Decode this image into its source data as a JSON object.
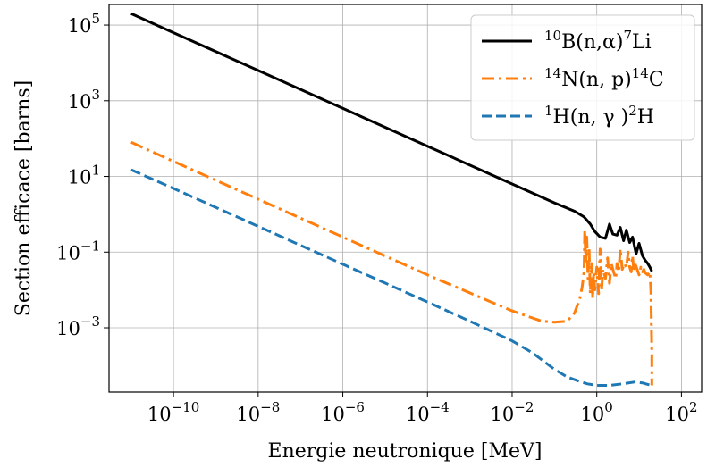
{
  "chart_data": {
    "type": "line",
    "x_scale": "log",
    "y_scale": "log",
    "xlabel": "Energie neutronique [MeV]",
    "ylabel": "Section efficace [barns]",
    "xlim": [
      3e-12,
      300
    ],
    "ylim": [
      2e-05,
      350000.0
    ],
    "grid": true,
    "legend_position": "top-right",
    "x_ticks": [
      {
        "value": 1e-10,
        "base": "10",
        "exp": "−10"
      },
      {
        "value": 1e-08,
        "base": "10",
        "exp": "−8"
      },
      {
        "value": 1e-06,
        "base": "10",
        "exp": "−6"
      },
      {
        "value": 0.0001,
        "base": "10",
        "exp": "−4"
      },
      {
        "value": 0.01,
        "base": "10",
        "exp": "−2"
      },
      {
        "value": 1,
        "base": "10",
        "exp": "0"
      },
      {
        "value": 100,
        "base": "10",
        "exp": "2"
      }
    ],
    "y_ticks": [
      {
        "value": 0.001,
        "base": "10",
        "exp": "−3"
      },
      {
        "value": 0.1,
        "base": "10",
        "exp": "−1"
      },
      {
        "value": 10,
        "base": "10",
        "exp": "1"
      },
      {
        "value": 1000,
        "base": "10",
        "exp": "3"
      },
      {
        "value": 100000,
        "base": "10",
        "exp": "5"
      }
    ],
    "series": [
      {
        "name": "10B(n,α)7Li",
        "legend_parts": [
          {
            "t": "10",
            "sup": true
          },
          {
            "t": "B(n,α)",
            "sup": false
          },
          {
            "t": "7",
            "sup": true
          },
          {
            "t": "Li",
            "sup": false
          }
        ],
        "color": "#000000",
        "style": "solid",
        "x": [
          1e-11,
          1e-10,
          1e-08,
          1e-06,
          0.0001,
          0.01,
          0.1,
          0.3,
          0.5,
          0.7,
          0.9,
          1.2,
          1.6,
          2.0,
          2.4,
          3.0,
          3.6,
          4.3,
          5.0,
          6.0,
          7.0,
          8.5,
          10,
          12,
          14,
          16,
          18,
          20
        ],
        "y": [
          200000,
          63000,
          6300,
          630,
          63,
          6.3,
          2.0,
          1.2,
          0.85,
          0.55,
          0.35,
          0.25,
          0.23,
          0.55,
          0.3,
          0.28,
          0.45,
          0.2,
          0.38,
          0.18,
          0.25,
          0.09,
          0.17,
          0.08,
          0.06,
          0.05,
          0.04,
          0.031
        ]
      },
      {
        "name": "14N(n, p)14C",
        "legend_parts": [
          {
            "t": "14",
            "sup": true
          },
          {
            "t": "N(n, p)",
            "sup": false
          },
          {
            "t": "14",
            "sup": true
          },
          {
            "t": "C",
            "sup": false
          }
        ],
        "color": "#ff7f0e",
        "style": "dashdot",
        "x": [
          1e-11,
          1e-10,
          1e-08,
          1e-06,
          0.0001,
          0.01,
          0.05,
          0.1,
          0.2,
          0.3,
          0.4,
          0.45,
          0.5,
          0.52,
          0.55,
          0.58,
          0.62,
          0.66,
          0.7,
          0.75,
          0.8,
          0.85,
          0.9,
          1.0,
          1.1,
          1.2,
          1.3,
          1.4,
          1.6,
          1.8,
          2.0,
          2.2,
          2.5,
          2.8,
          3.0,
          3.3,
          3.6,
          4.0,
          4.5,
          5.0,
          5.5,
          6.0,
          6.5,
          7.0,
          7.5,
          8.0,
          9.0,
          10,
          11,
          12,
          13,
          14,
          16,
          18,
          19,
          20,
          20
        ],
        "y": [
          80,
          25,
          2.5,
          0.25,
          0.025,
          0.0028,
          0.0015,
          0.0014,
          0.0015,
          0.0025,
          0.006,
          0.012,
          0.03,
          0.38,
          0.05,
          0.25,
          0.02,
          0.12,
          0.008,
          0.05,
          0.006,
          0.03,
          0.01,
          0.04,
          0.008,
          0.12,
          0.01,
          0.035,
          0.02,
          0.07,
          0.015,
          0.05,
          0.03,
          0.02,
          0.05,
          0.03,
          0.12,
          0.035,
          0.05,
          0.04,
          0.1,
          0.04,
          0.03,
          0.08,
          0.03,
          0.05,
          0.035,
          0.025,
          0.04,
          0.03,
          0.035,
          0.028,
          0.025,
          0.03,
          0.01,
          0.0002,
          3e-05
        ]
      },
      {
        "name": "1H(n, γ )2H",
        "legend_parts": [
          {
            "t": "1",
            "sup": true
          },
          {
            "t": "H(n, γ )",
            "sup": false
          },
          {
            "t": "2",
            "sup": true
          },
          {
            "t": "H",
            "sup": false
          }
        ],
        "color": "#1f77b4",
        "style": "dashed",
        "x": [
          1e-11,
          1e-10,
          1e-08,
          1e-06,
          0.0001,
          0.001,
          0.01,
          0.03,
          0.1,
          0.2,
          0.4,
          0.6,
          1.0,
          2.0,
          4.0,
          8.0,
          12,
          16,
          20
        ],
        "y": [
          15,
          4.8,
          0.48,
          0.048,
          0.0048,
          0.0015,
          0.00045,
          0.00022,
          8e-05,
          5e-05,
          3.8e-05,
          3.3e-05,
          3e-05,
          3e-05,
          3.3e-05,
          3.7e-05,
          3.5e-05,
          3.2e-05,
          3e-05
        ]
      }
    ]
  }
}
